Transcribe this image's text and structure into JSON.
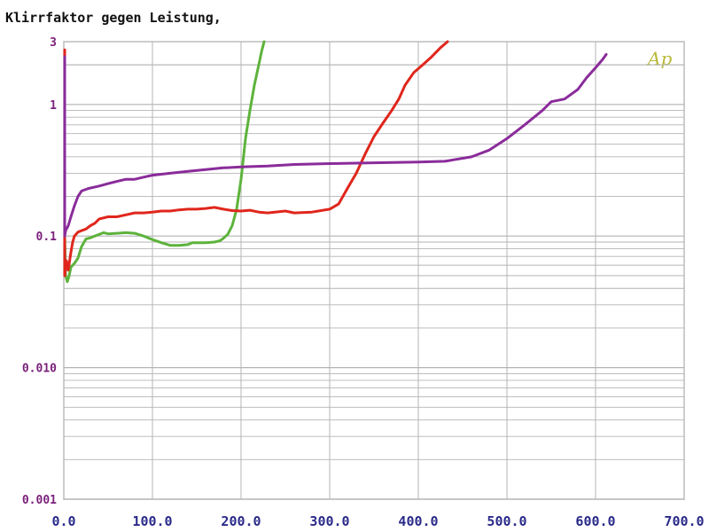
{
  "chart_data": {
    "type": "line",
    "title": "Klirrfaktor gegen Leistung,",
    "logo_text": "Ap",
    "xlabel": "",
    "ylabel": "",
    "x_scale": "linear",
    "y_scale": "log",
    "xlim": [
      0,
      700
    ],
    "ylim": [
      0.001,
      3
    ],
    "x_ticks": [
      0,
      100,
      200,
      300,
      400,
      500,
      600,
      700
    ],
    "x_tick_labels": [
      "0.0",
      "100.0",
      "200.0",
      "300.0",
      "400.0",
      "500.0",
      "600.0",
      "700.0"
    ],
    "y_ticks": [
      0.001,
      0.01,
      0.1,
      1,
      3
    ],
    "y_tick_labels": [
      "0.001",
      "0.010",
      "0.1",
      "1",
      "3"
    ],
    "grid": true,
    "colors": {
      "grid": "#b4b4b4",
      "axis": "#808080",
      "green": "#5db33c",
      "red": "#e0261c",
      "purple": "#8a2c9a"
    },
    "series": [
      {
        "color": "#5db33c",
        "points": [
          [
            1,
            2.2
          ],
          [
            1,
            0.1
          ],
          [
            2,
            0.05
          ],
          [
            4,
            0.045
          ],
          [
            6,
            0.05
          ],
          [
            8,
            0.058
          ],
          [
            12,
            0.062
          ],
          [
            16,
            0.068
          ],
          [
            20,
            0.083
          ],
          [
            25,
            0.095
          ],
          [
            30,
            0.097
          ],
          [
            35,
            0.1
          ],
          [
            40,
            0.103
          ],
          [
            45,
            0.106
          ],
          [
            50,
            0.104
          ],
          [
            60,
            0.105
          ],
          [
            70,
            0.106
          ],
          [
            80,
            0.105
          ],
          [
            90,
            0.1
          ],
          [
            100,
            0.094
          ],
          [
            110,
            0.089
          ],
          [
            115,
            0.087
          ],
          [
            120,
            0.085
          ],
          [
            130,
            0.085
          ],
          [
            140,
            0.086
          ],
          [
            145,
            0.089
          ],
          [
            160,
            0.089
          ],
          [
            170,
            0.09
          ],
          [
            176,
            0.092
          ],
          [
            180,
            0.096
          ],
          [
            185,
            0.103
          ],
          [
            190,
            0.12
          ],
          [
            195,
            0.16
          ],
          [
            200,
            0.27
          ],
          [
            205,
            0.55
          ],
          [
            210,
            0.9
          ],
          [
            215,
            1.4
          ],
          [
            220,
            2.0
          ],
          [
            223,
            2.5
          ],
          [
            226,
            3.0
          ]
        ]
      },
      {
        "color": "#e0261c",
        "points": [
          [
            1,
            2.6
          ],
          [
            1,
            0.05
          ],
          [
            3,
            0.065
          ],
          [
            5,
            0.055
          ],
          [
            8,
            0.075
          ],
          [
            10,
            0.09
          ],
          [
            12,
            0.1
          ],
          [
            16,
            0.107
          ],
          [
            20,
            0.11
          ],
          [
            25,
            0.113
          ],
          [
            30,
            0.12
          ],
          [
            35,
            0.125
          ],
          [
            40,
            0.135
          ],
          [
            50,
            0.14
          ],
          [
            60,
            0.14
          ],
          [
            70,
            0.145
          ],
          [
            80,
            0.15
          ],
          [
            90,
            0.15
          ],
          [
            100,
            0.152
          ],
          [
            110,
            0.155
          ],
          [
            120,
            0.155
          ],
          [
            130,
            0.158
          ],
          [
            140,
            0.16
          ],
          [
            150,
            0.16
          ],
          [
            160,
            0.162
          ],
          [
            170,
            0.165
          ],
          [
            180,
            0.16
          ],
          [
            190,
            0.156
          ],
          [
            200,
            0.155
          ],
          [
            210,
            0.157
          ],
          [
            220,
            0.152
          ],
          [
            230,
            0.15
          ],
          [
            250,
            0.155
          ],
          [
            260,
            0.15
          ],
          [
            280,
            0.152
          ],
          [
            300,
            0.16
          ],
          [
            310,
            0.175
          ],
          [
            320,
            0.23
          ],
          [
            330,
            0.3
          ],
          [
            340,
            0.42
          ],
          [
            350,
            0.57
          ],
          [
            360,
            0.72
          ],
          [
            370,
            0.9
          ],
          [
            378,
            1.1
          ],
          [
            385,
            1.4
          ],
          [
            395,
            1.75
          ],
          [
            405,
            2.0
          ],
          [
            415,
            2.3
          ],
          [
            425,
            2.7
          ],
          [
            433,
            3.0
          ]
        ]
      },
      {
        "color": "#8a2c9a",
        "points": [
          [
            1,
            2.3
          ],
          [
            1,
            0.1
          ],
          [
            2,
            0.11
          ],
          [
            5,
            0.12
          ],
          [
            8,
            0.14
          ],
          [
            12,
            0.17
          ],
          [
            16,
            0.2
          ],
          [
            20,
            0.22
          ],
          [
            28,
            0.23
          ],
          [
            40,
            0.24
          ],
          [
            50,
            0.25
          ],
          [
            60,
            0.26
          ],
          [
            70,
            0.27
          ],
          [
            80,
            0.27
          ],
          [
            90,
            0.28
          ],
          [
            100,
            0.29
          ],
          [
            120,
            0.3
          ],
          [
            140,
            0.31
          ],
          [
            160,
            0.32
          ],
          [
            180,
            0.33
          ],
          [
            200,
            0.335
          ],
          [
            230,
            0.34
          ],
          [
            260,
            0.35
          ],
          [
            300,
            0.355
          ],
          [
            350,
            0.36
          ],
          [
            400,
            0.365
          ],
          [
            430,
            0.37
          ],
          [
            440,
            0.38
          ],
          [
            460,
            0.4
          ],
          [
            480,
            0.45
          ],
          [
            500,
            0.55
          ],
          [
            520,
            0.7
          ],
          [
            540,
            0.9
          ],
          [
            550,
            1.05
          ],
          [
            565,
            1.1
          ],
          [
            580,
            1.3
          ],
          [
            590,
            1.6
          ],
          [
            600,
            1.9
          ],
          [
            608,
            2.2
          ],
          [
            612,
            2.4
          ]
        ]
      }
    ]
  }
}
